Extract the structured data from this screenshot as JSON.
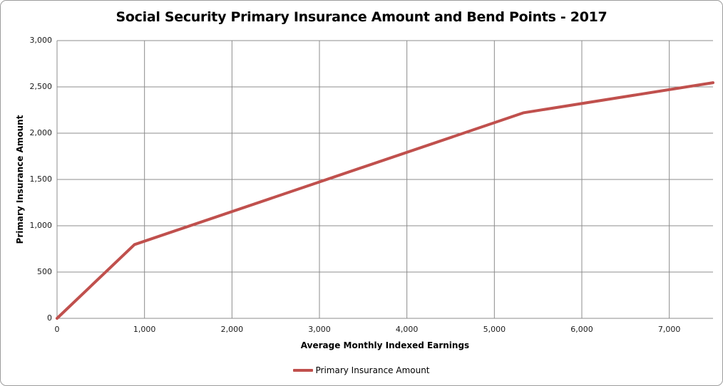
{
  "title": "Social Security Primary Insurance Amount and Bend Points - 2017",
  "colors": {
    "line": "#C0504D",
    "gridline": "#8c8c8c",
    "axis": "#8c8c8c",
    "text": "#000000",
    "frame_border": "#9c9c9c",
    "background": "#FFFFFF"
  },
  "legend": {
    "label": "Primary Insurance Amount"
  },
  "chart_data": {
    "type": "line",
    "title": "Social Security Primary Insurance Amount and Bend Points - 2017",
    "xlabel": "Average Monthly Indexed Earnings",
    "ylabel": "Primary Insurance Amount",
    "xlim": [
      0,
      7500
    ],
    "ylim": [
      0,
      3000
    ],
    "grid": true,
    "legend_position": "bottom",
    "x_ticks": [
      0,
      1000,
      2000,
      3000,
      4000,
      5000,
      6000,
      7000
    ],
    "x_tick_labels": [
      "0",
      "1,000",
      "2,000",
      "3,000",
      "4,000",
      "5,000",
      "6,000",
      "7,000"
    ],
    "y_ticks": [
      0,
      500,
      1000,
      1500,
      2000,
      2500,
      3000
    ],
    "y_tick_labels": [
      "0",
      "500",
      "1,000",
      "1,500",
      "2,000",
      "2,500",
      "3,000"
    ],
    "series": [
      {
        "name": "Primary Insurance Amount",
        "color": "#C0504D",
        "points": [
          {
            "x": 0,
            "y": 0
          },
          {
            "x": 885,
            "y": 796.5
          },
          {
            "x": 5336,
            "y": 2220.82
          },
          {
            "x": 7500,
            "y": 2545.42
          }
        ],
        "bend_points": [
          {
            "x": 885,
            "y": 796.5
          },
          {
            "x": 5336,
            "y": 2220.82
          }
        ]
      }
    ]
  }
}
